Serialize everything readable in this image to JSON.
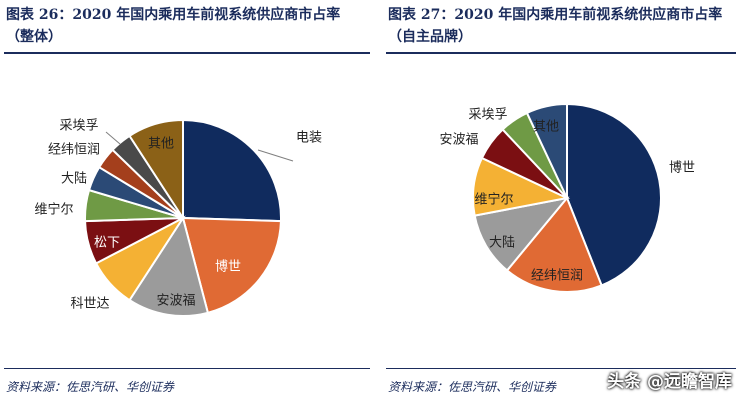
{
  "chart_data": [
    {
      "type": "pie",
      "title_line1": "图表 26：2020 年国内乘用车前视系统供应商市占率",
      "title_line2": "（整体）",
      "source": "资料来源：佐思汽研、华创证券",
      "slices": [
        {
          "label": "电装",
          "value": 25,
          "color": "#102b5e"
        },
        {
          "label": "博世",
          "value": 20,
          "color": "#e06a34"
        },
        {
          "label": "安波福",
          "value": 13,
          "color": "#9b9b9b"
        },
        {
          "label": "科世达",
          "value": 8,
          "color": "#f4b134"
        },
        {
          "label": "松下",
          "value": 7,
          "color": "#7b0f12"
        },
        {
          "label": "维宁尔",
          "value": 5,
          "color": "#6f9a45"
        },
        {
          "label": "大陆",
          "value": 4,
          "color": "#2b4a76"
        },
        {
          "label": "经纬恒润",
          "value": 3.5,
          "color": "#a43f1c"
        },
        {
          "label": "采埃孚",
          "value": 3.5,
          "color": "#4a4a4a"
        },
        {
          "label": "其他",
          "value": 9,
          "color": "#8b6117"
        }
      ]
    },
    {
      "type": "pie",
      "title_line1": "图表 27：2020 年国内乘用车前视系统供应商市占率",
      "title_line2": "（自主品牌）",
      "source": "资料来源：佐思汽研、华创证券",
      "slices": [
        {
          "label": "博世",
          "value": 44,
          "color": "#102b5e"
        },
        {
          "label": "经纬恒润",
          "value": 17,
          "color": "#e06a34"
        },
        {
          "label": "大陆",
          "value": 11,
          "color": "#9b9b9b"
        },
        {
          "label": "维宁尔",
          "value": 10,
          "color": "#f4b134"
        },
        {
          "label": "安波福",
          "value": 6,
          "color": "#7b0f12"
        },
        {
          "label": "采埃孚",
          "value": 5,
          "color": "#6f9a45"
        },
        {
          "label": "其他",
          "value": 7,
          "color": "#2b4a76"
        }
      ]
    }
  ],
  "watermark": "头条 @远瞻智库"
}
